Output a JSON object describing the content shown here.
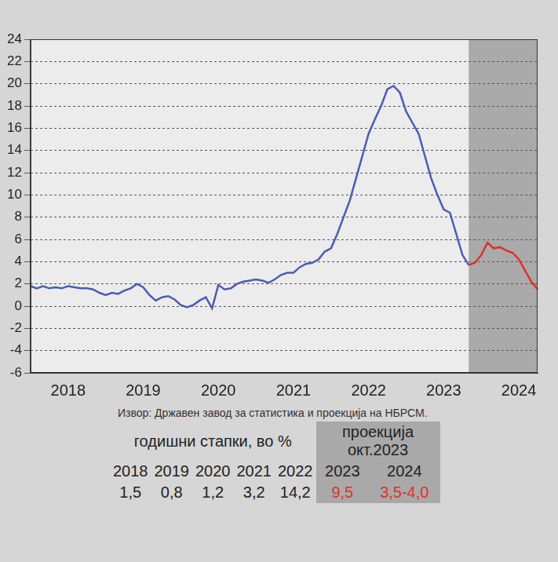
{
  "chart_data": {
    "type": "line",
    "categories": [
      null,
      null,
      null,
      null,
      null,
      null,
      "2018",
      null,
      null,
      null,
      null,
      null,
      null,
      null,
      null,
      null,
      null,
      null,
      "2019",
      null,
      null,
      null,
      null,
      null,
      null,
      null,
      null,
      null,
      null,
      null,
      "2020",
      null,
      null,
      null,
      null,
      null,
      null,
      null,
      null,
      null,
      null,
      null,
      "2021",
      null,
      null,
      null,
      null,
      null,
      null,
      null,
      null,
      null,
      null,
      null,
      "2022",
      null,
      null,
      null,
      null,
      null,
      null,
      null,
      null,
      null,
      null,
      null,
      "2023",
      null,
      null,
      null,
      null,
      null,
      null,
      null,
      null,
      null,
      null,
      null,
      "2024",
      null,
      null,
      null
    ],
    "series": [
      {
        "color": "#4a5cb4",
        "values": [
          1.8,
          1.6,
          1.8,
          1.6,
          1.7,
          1.6,
          1.8,
          1.7,
          1.6,
          1.6,
          1.5,
          1.2,
          1.0,
          1.2,
          1.1,
          1.4,
          1.6,
          2.0,
          1.7,
          1.0,
          0.5,
          0.8,
          0.9,
          0.6,
          0.1,
          -0.1,
          0.1,
          0.5,
          0.8,
          -0.2,
          1.9,
          1.5,
          1.6,
          2.0,
          2.2,
          2.3,
          2.4,
          2.3,
          2.1,
          2.4,
          2.8,
          3.0,
          3.0,
          3.5,
          3.8,
          3.9,
          4.2,
          4.9,
          5.2,
          6.5,
          8.0,
          9.5,
          11.5,
          13.5,
          15.5,
          16.8,
          18.0,
          19.5,
          19.8,
          19.2,
          17.5,
          16.5,
          15.5,
          13.5,
          11.5,
          10.0,
          8.7,
          8.4,
          6.5,
          4.6,
          3.7,
          null,
          null,
          null,
          null,
          null,
          null,
          null,
          null,
          null,
          null,
          null
        ]
      },
      {
        "color": "#e0302a",
        "values": [
          null,
          null,
          null,
          null,
          null,
          null,
          null,
          null,
          null,
          null,
          null,
          null,
          null,
          null,
          null,
          null,
          null,
          null,
          null,
          null,
          null,
          null,
          null,
          null,
          null,
          null,
          null,
          null,
          null,
          null,
          null,
          null,
          null,
          null,
          null,
          null,
          null,
          null,
          null,
          null,
          null,
          null,
          null,
          null,
          null,
          null,
          null,
          null,
          null,
          null,
          null,
          null,
          null,
          null,
          null,
          null,
          null,
          null,
          null,
          null,
          null,
          null,
          null,
          null,
          null,
          null,
          null,
          null,
          null,
          null,
          3.7,
          3.9,
          4.6,
          5.7,
          5.2,
          5.3,
          5.0,
          4.8,
          4.2,
          3.2,
          2.2,
          1.5
        ]
      }
    ],
    "ylim": [
      -6,
      24
    ],
    "yticks": [
      -6,
      -4,
      -2,
      0,
      2,
      4,
      6,
      8,
      10,
      12,
      14,
      16,
      18,
      20,
      22,
      24
    ],
    "grid": true
  },
  "source": "Извор: Државен завод за статистика и проекција на НБРСМ.",
  "table": {
    "title": "годишни стапки, во %",
    "years": [
      "2018",
      "2019",
      "2020",
      "2021",
      "2022"
    ],
    "values": [
      "1,5",
      "0,8",
      "1,2",
      "3,2",
      "14,2"
    ],
    "projection": {
      "title": "проекција окт.2023",
      "color": "#e0302a",
      "years": [
        "2023",
        "2024"
      ],
      "values": [
        "9,5",
        "3,5-4,0"
      ]
    }
  }
}
